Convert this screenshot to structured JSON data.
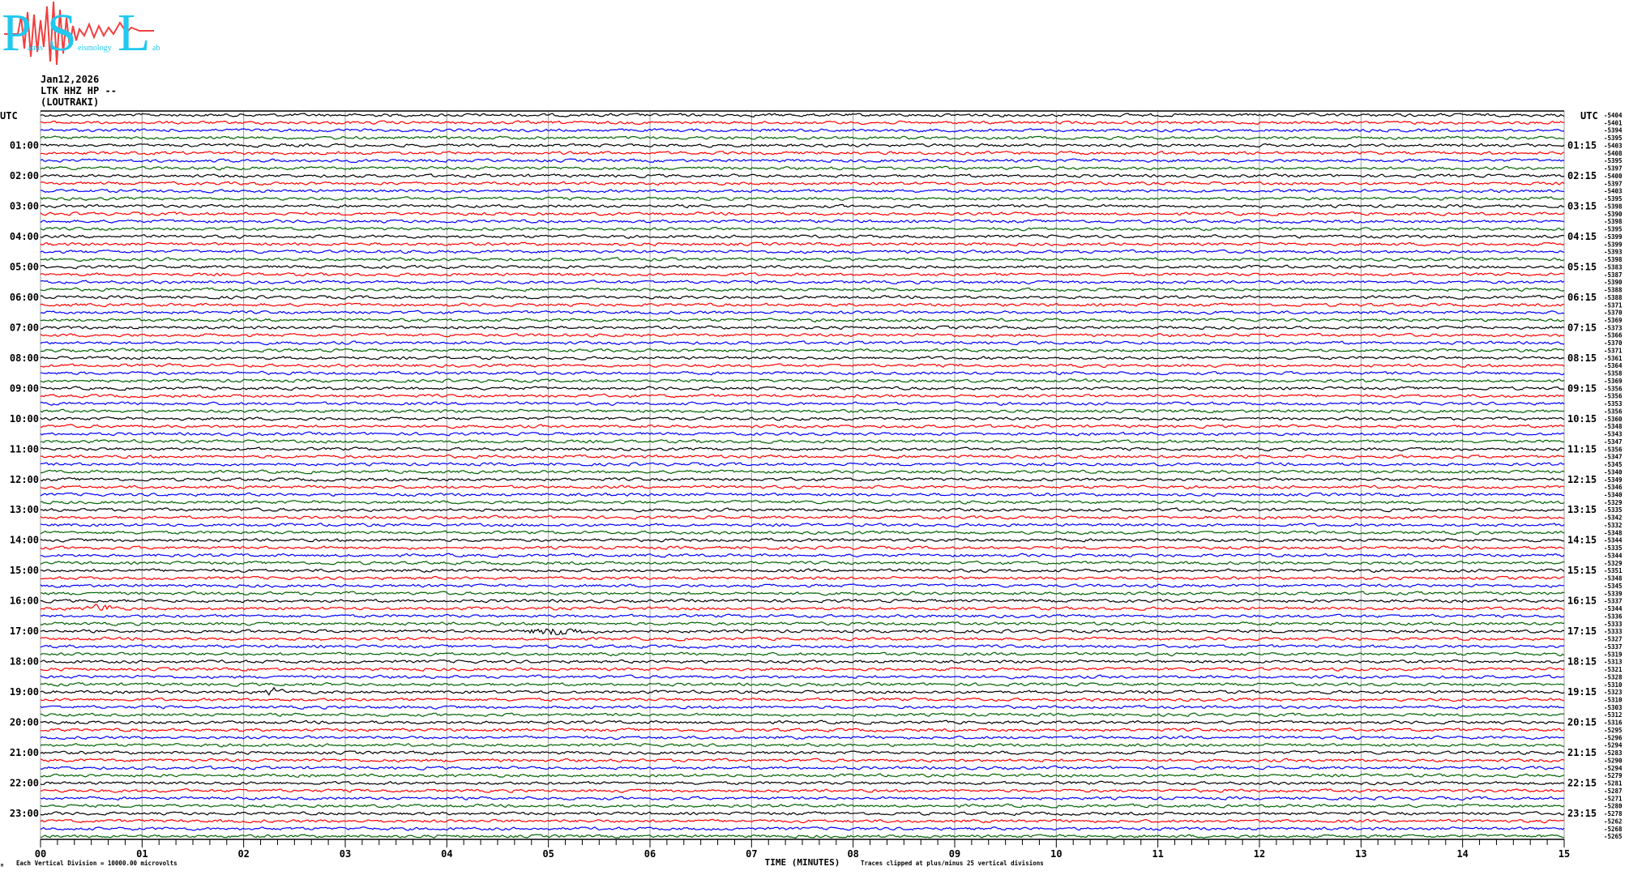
{
  "logo": {
    "big": [
      "P",
      "S",
      "L"
    ],
    "small": [
      "atras",
      "eismology",
      "ab"
    ],
    "colors": {
      "letters": "#22c8ee",
      "wave": "#f04040"
    }
  },
  "header": {
    "date": "Jan12,2026",
    "station": "LTK HHZ HP --",
    "location": "(LOUTRAKI)"
  },
  "chart_data": {
    "type": "line",
    "subtype": "helicorder",
    "xlabel": "TIME (MINUTES)",
    "xlim": [
      0,
      15
    ],
    "xticks": [
      "00",
      "01",
      "02",
      "03",
      "04",
      "05",
      "06",
      "07",
      "08",
      "09",
      "10",
      "11",
      "12",
      "13",
      "14",
      "15"
    ],
    "grid": true,
    "left_label_header": "UTC",
    "right_label_header": "UTC",
    "left_hour_labels": [
      "01:00",
      "02:00",
      "03:00",
      "04:00",
      "05:00",
      "06:00",
      "07:00",
      "08:00",
      "09:00",
      "10:00",
      "11:00",
      "12:00",
      "13:00",
      "14:00",
      "15:00",
      "16:00",
      "17:00",
      "18:00",
      "19:00",
      "20:00",
      "21:00",
      "22:00",
      "23:00"
    ],
    "right_hour_labels": [
      "01:15",
      "02:15",
      "03:15",
      "04:15",
      "05:15",
      "06:15",
      "07:15",
      "08:15",
      "09:15",
      "10:15",
      "11:15",
      "12:15",
      "13:15",
      "14:15",
      "15:15",
      "16:15",
      "17:15",
      "18:15",
      "19:15",
      "20:15",
      "21:15",
      "22:15",
      "23:15"
    ],
    "trace_colors": [
      "#000000",
      "#ff0000",
      "#0000ff",
      "#006400"
    ],
    "trace_offsets": [
      "-5404",
      "-5401",
      "-5394",
      "-5395",
      "-5403",
      "-5408",
      "-5395",
      "-5397",
      "-5400",
      "-5397",
      "-5403",
      "-5395",
      "-5398",
      "-5390",
      "-5398",
      "-5395",
      "-5399",
      "-5399",
      "-5393",
      "-5398",
      "-5383",
      "-5387",
      "-5390",
      "-5388",
      "-5388",
      "-5371",
      "-5370",
      "-5369",
      "-5373",
      "-5366",
      "-5370",
      "-5371",
      "-5361",
      "-5364",
      "-5358",
      "-5369",
      "-5356",
      "-5356",
      "-5353",
      "-5356",
      "-5360",
      "-5348",
      "-5343",
      "-5347",
      "-5356",
      "-5347",
      "-5345",
      "-5340",
      "-5349",
      "-5346",
      "-5340",
      "-5329",
      "-5335",
      "-5342",
      "-5332",
      "-5348",
      "-5344",
      "-5335",
      "-5344",
      "-5329",
      "-5351",
      "-5348",
      "-5345",
      "-5339",
      "-5337",
      "-5344",
      "-5336",
      "-5333",
      "-5333",
      "-5327",
      "-5337",
      "-5319",
      "-5313",
      "-5321",
      "-5328",
      "-5310",
      "-5323",
      "-5310",
      "-5303",
      "-5312",
      "-5316",
      "-5295",
      "-5296",
      "-5294",
      "-5283",
      "-5290",
      "-5294",
      "-5279",
      "-5281",
      "-5287",
      "-5271",
      "-5280",
      "-5278",
      "-5262",
      "-5268",
      "-5265"
    ],
    "events": [
      {
        "trace": 65,
        "minutes": [
          0.4,
          0.8
        ]
      },
      {
        "trace": 68,
        "minutes": [
          4.7,
          5.5
        ]
      },
      {
        "trace": 76,
        "minutes": [
          2.2,
          2.4
        ]
      }
    ]
  },
  "footer": {
    "corner_mark": "M",
    "scale_note": "Each Vertical Division = 10000.00 microvolts",
    "clip_note": "Traces clipped at plus/minus 25 vertical divisions"
  }
}
